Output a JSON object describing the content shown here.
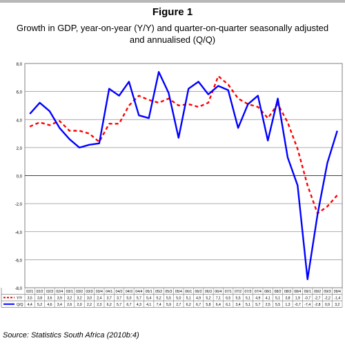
{
  "figure": {
    "title": "Figure 1",
    "subtitle": "Growth in GDP, year-on-year (Y/Y) and quarter-on-quarter seasonally adjusted and annualised (Q/Q)",
    "source": "Source: Statistics South Africa (2010b:4)"
  },
  "chart_data": {
    "type": "line",
    "ylim": [
      -8,
      8
    ],
    "y_ticks": [
      "8,0",
      "6,0",
      "4,0",
      "2,0",
      "0,0",
      "-2,0",
      "-4,0",
      "-6,0",
      "-8,0"
    ],
    "grid": "horizontal",
    "categories": [
      "02/1",
      "02/2",
      "02/3",
      "02/4",
      "03/1",
      "03/2",
      "03/3",
      "03/4",
      "04/1",
      "04/2",
      "04/3",
      "04/4",
      "05/1",
      "05/2",
      "05/3",
      "05/4",
      "06/1",
      "06/2",
      "06/3",
      "06/4",
      "07/1",
      "07/2",
      "07/3",
      "07/4",
      "08/1",
      "08/2",
      "08/3",
      "08/4",
      "09/1",
      "09/2",
      "09/3",
      "09/4"
    ],
    "series": [
      {
        "name": "Y/Y",
        "color": "#ff0000",
        "style": "dashed",
        "values": [
          3.5,
          3.8,
          3.6,
          3.9,
          3.2,
          3.2,
          3.0,
          2.4,
          3.7,
          3.7,
          5.0,
          5.7,
          5.4,
          5.2,
          5.5,
          5.0,
          5.1,
          4.9,
          5.2,
          7.1,
          6.5,
          5.5,
          5.1,
          4.9,
          4.1,
          5.1,
          3.8,
          1.9,
          -0.7,
          -2.7,
          -2.2,
          -1.4
        ],
        "labels": [
          "3,5",
          "3,8",
          "3,6",
          "3,9",
          "3,2",
          "3,2",
          "3,0",
          "2,4",
          "3,7",
          "3,7",
          "5,0",
          "5,7",
          "5,4",
          "5,2",
          "5,5",
          "5,0",
          "5,1",
          "4,9",
          "5,2",
          "7,1",
          "6,5",
          "5,5",
          "5,1",
          "4,9",
          "4,1",
          "5,1",
          "3,8",
          "1,9",
          "-0,7",
          "-2,7",
          "-2,2",
          "-1,4"
        ]
      },
      {
        "name": "Q/Q",
        "color": "#0000ff",
        "style": "solid",
        "values": [
          4.4,
          5.2,
          4.6,
          3.4,
          2.6,
          2.0,
          2.2,
          2.3,
          6.2,
          5.7,
          6.7,
          4.3,
          4.1,
          7.4,
          5.9,
          2.7,
          6.2,
          6.7,
          5.8,
          6.4,
          6.1,
          3.4,
          5.1,
          5.7,
          2.5,
          5.5,
          1.3,
          -0.7,
          -7.4,
          -2.8,
          0.9,
          3.2
        ],
        "labels": [
          "4,4",
          "5,2",
          "4,6",
          "3,4",
          "2,6",
          "2,0",
          "2,2",
          "2,3",
          "6,2",
          "5,7",
          "6,7",
          "4,3",
          "4,1",
          "7,4",
          "5,9",
          "2,7",
          "6,2",
          "6,7",
          "5,8",
          "6,4",
          "6,1",
          "3,4",
          "5,1",
          "5,7",
          "2,5",
          "5,5",
          "1,3",
          "-0,7",
          "-7,4",
          "-2,8",
          "0,9",
          "3,2"
        ]
      }
    ]
  }
}
